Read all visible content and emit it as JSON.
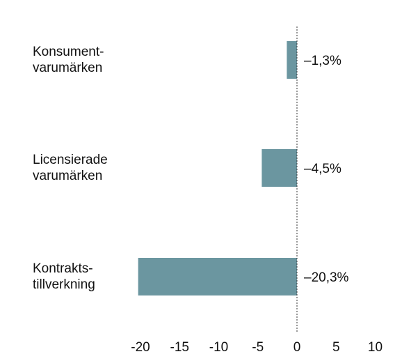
{
  "chart_data": {
    "type": "bar",
    "orientation": "horizontal",
    "title": "",
    "xlabel": "",
    "ylabel": "",
    "xlim": [
      -20,
      10
    ],
    "x_ticks": [
      -20,
      -15,
      -10,
      -5,
      0,
      5,
      10
    ],
    "tick_labels": [
      "-20",
      "-15",
      "-10",
      "-5",
      "0",
      "5",
      "10"
    ],
    "zero_line": "dashed",
    "grid": false,
    "legend": "none",
    "bar_color": "#6b96a0",
    "categories": [
      [
        "Konsument-",
        "varumärken"
      ],
      [
        "Licensierade",
        "varumärken"
      ],
      [
        "Kontrakts-",
        "tillverkning"
      ]
    ],
    "values": [
      -1.3,
      -4.5,
      -20.3
    ],
    "value_labels": [
      "–1,3%",
      "–4,5%",
      "–20,3%"
    ]
  }
}
